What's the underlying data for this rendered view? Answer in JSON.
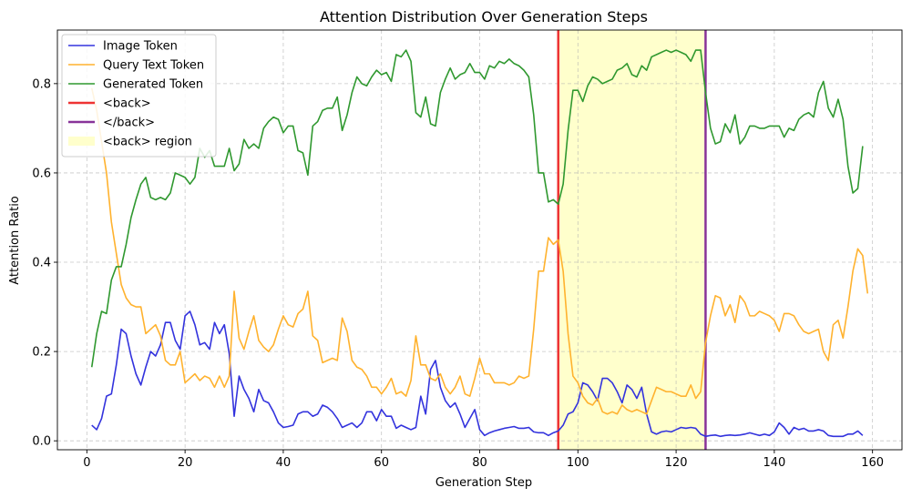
{
  "chart_data": {
    "type": "line",
    "title": "Attention Distribution Over Generation Steps",
    "xlabel": "Generation Step",
    "ylabel": "Attention Ratio",
    "xlim": [
      -6,
      166
    ],
    "ylim": [
      -0.02,
      0.92
    ],
    "xticks": [
      0,
      20,
      40,
      60,
      80,
      100,
      120,
      140,
      160
    ],
    "yticks": [
      0.0,
      0.2,
      0.4,
      0.6,
      0.8
    ],
    "grid": true,
    "legend_position": "top-left",
    "region": {
      "label": "<back> region",
      "x_start": 96,
      "x_end": 126,
      "color": "#ffffcc"
    },
    "vlines": [
      {
        "label": "<back>",
        "x": 96,
        "color": "#ee3333"
      },
      {
        "label": "</back>",
        "x": 126,
        "color": "#883399"
      }
    ],
    "series": [
      {
        "name": "Image Token",
        "color": "#3333dd",
        "x_start": 1,
        "values": [
          0.035,
          0.025,
          0.05,
          0.1,
          0.105,
          0.17,
          0.25,
          0.24,
          0.19,
          0.15,
          0.125,
          0.165,
          0.2,
          0.19,
          0.215,
          0.265,
          0.265,
          0.225,
          0.205,
          0.28,
          0.29,
          0.26,
          0.215,
          0.22,
          0.205,
          0.265,
          0.24,
          0.26,
          0.195,
          0.055,
          0.145,
          0.115,
          0.095,
          0.065,
          0.115,
          0.09,
          0.085,
          0.065,
          0.04,
          0.03,
          0.032,
          0.035,
          0.06,
          0.065,
          0.065,
          0.055,
          0.06,
          0.08,
          0.075,
          0.065,
          0.05,
          0.03,
          0.035,
          0.04,
          0.03,
          0.04,
          0.065,
          0.065,
          0.045,
          0.07,
          0.055,
          0.055,
          0.028,
          0.035,
          0.03,
          0.025,
          0.03,
          0.1,
          0.06,
          0.16,
          0.18,
          0.12,
          0.09,
          0.075,
          0.085,
          0.06,
          0.03,
          0.05,
          0.07,
          0.025,
          0.012,
          0.018,
          0.022,
          0.025,
          0.028,
          0.03,
          0.032,
          0.028,
          0.028,
          0.03,
          0.02,
          0.018,
          0.018,
          0.012,
          0.018,
          0.022,
          0.035,
          0.06,
          0.065,
          0.085,
          0.13,
          0.125,
          0.11,
          0.09,
          0.14,
          0.14,
          0.13,
          0.11,
          0.085,
          0.125,
          0.115,
          0.095,
          0.12,
          0.06,
          0.02,
          0.015,
          0.02,
          0.022,
          0.02,
          0.025,
          0.03,
          0.028,
          0.03,
          0.028,
          0.015,
          0.01,
          0.012,
          0.013,
          0.01,
          0.012,
          0.013,
          0.012,
          0.013,
          0.015,
          0.018,
          0.015,
          0.012,
          0.015,
          0.012,
          0.02,
          0.04,
          0.03,
          0.015,
          0.03,
          0.025,
          0.028,
          0.022,
          0.022,
          0.025,
          0.022,
          0.012,
          0.01,
          0.01,
          0.01,
          0.015,
          0.015,
          0.022,
          0.012
        ]
      },
      {
        "name": "Query Text Token",
        "color": "#ffb22e",
        "x_start": 1,
        "values": [
          0.79,
          0.74,
          0.67,
          0.6,
          0.49,
          0.42,
          0.35,
          0.32,
          0.305,
          0.3,
          0.3,
          0.24,
          0.25,
          0.26,
          0.235,
          0.18,
          0.17,
          0.17,
          0.2,
          0.13,
          0.14,
          0.15,
          0.135,
          0.145,
          0.14,
          0.12,
          0.145,
          0.12,
          0.145,
          0.335,
          0.23,
          0.205,
          0.245,
          0.28,
          0.225,
          0.21,
          0.2,
          0.215,
          0.25,
          0.28,
          0.26,
          0.255,
          0.285,
          0.295,
          0.335,
          0.235,
          0.225,
          0.175,
          0.18,
          0.185,
          0.18,
          0.275,
          0.245,
          0.18,
          0.165,
          0.16,
          0.145,
          0.12,
          0.12,
          0.105,
          0.12,
          0.14,
          0.105,
          0.11,
          0.1,
          0.135,
          0.235,
          0.17,
          0.17,
          0.14,
          0.135,
          0.15,
          0.12,
          0.105,
          0.12,
          0.145,
          0.105,
          0.1,
          0.14,
          0.185,
          0.15,
          0.15,
          0.13,
          0.13,
          0.13,
          0.125,
          0.13,
          0.145,
          0.14,
          0.145,
          0.25,
          0.38,
          0.38,
          0.455,
          0.44,
          0.45,
          0.38,
          0.24,
          0.145,
          0.13,
          0.1,
          0.085,
          0.08,
          0.095,
          0.065,
          0.06,
          0.065,
          0.06,
          0.08,
          0.07,
          0.065,
          0.07,
          0.065,
          0.06,
          0.09,
          0.12,
          0.115,
          0.11,
          0.11,
          0.105,
          0.1,
          0.1,
          0.125,
          0.095,
          0.11,
          0.22,
          0.28,
          0.325,
          0.32,
          0.28,
          0.305,
          0.265,
          0.325,
          0.31,
          0.28,
          0.28,
          0.29,
          0.285,
          0.28,
          0.27,
          0.245,
          0.285,
          0.285,
          0.28,
          0.26,
          0.245,
          0.24,
          0.245,
          0.25,
          0.2,
          0.18,
          0.26,
          0.27,
          0.23,
          0.3,
          0.38,
          0.43,
          0.415,
          0.33
        ]
      },
      {
        "name": "Generated Token",
        "color": "#2f982f",
        "x_start": 1,
        "values": [
          0.165,
          0.24,
          0.29,
          0.285,
          0.36,
          0.39,
          0.39,
          0.44,
          0.5,
          0.54,
          0.575,
          0.59,
          0.545,
          0.54,
          0.545,
          0.54,
          0.555,
          0.6,
          0.595,
          0.59,
          0.575,
          0.59,
          0.655,
          0.635,
          0.65,
          0.615,
          0.615,
          0.615,
          0.655,
          0.605,
          0.62,
          0.675,
          0.655,
          0.665,
          0.655,
          0.7,
          0.715,
          0.725,
          0.72,
          0.69,
          0.705,
          0.705,
          0.65,
          0.645,
          0.595,
          0.705,
          0.715,
          0.74,
          0.745,
          0.745,
          0.77,
          0.695,
          0.73,
          0.78,
          0.815,
          0.8,
          0.795,
          0.815,
          0.83,
          0.82,
          0.825,
          0.805,
          0.865,
          0.86,
          0.875,
          0.85,
          0.735,
          0.725,
          0.77,
          0.71,
          0.705,
          0.78,
          0.81,
          0.835,
          0.81,
          0.82,
          0.825,
          0.845,
          0.825,
          0.825,
          0.81,
          0.84,
          0.835,
          0.85,
          0.845,
          0.855,
          0.845,
          0.84,
          0.83,
          0.815,
          0.73,
          0.6,
          0.6,
          0.535,
          0.54,
          0.53,
          0.575,
          0.695,
          0.785,
          0.785,
          0.76,
          0.795,
          0.815,
          0.81,
          0.8,
          0.805,
          0.81,
          0.83,
          0.835,
          0.845,
          0.82,
          0.815,
          0.84,
          0.83,
          0.86,
          0.865,
          0.87,
          0.875,
          0.87,
          0.875,
          0.87,
          0.865,
          0.85,
          0.875,
          0.875,
          0.78,
          0.7,
          0.665,
          0.67,
          0.71,
          0.69,
          0.73,
          0.665,
          0.68,
          0.705,
          0.705,
          0.7,
          0.7,
          0.705,
          0.705,
          0.705,
          0.68,
          0.7,
          0.695,
          0.72,
          0.73,
          0.735,
          0.725,
          0.78,
          0.805,
          0.745,
          0.725,
          0.765,
          0.72,
          0.615,
          0.555,
          0.565,
          0.66
        ]
      }
    ]
  }
}
